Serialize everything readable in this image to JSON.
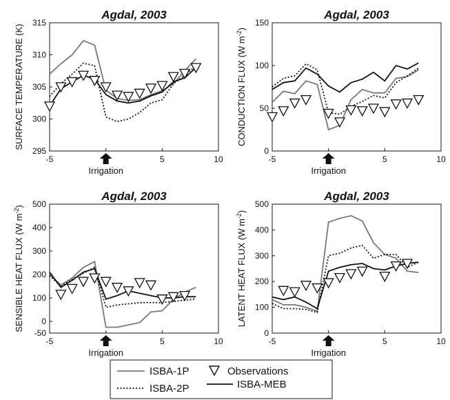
{
  "legend": {
    "items": [
      {
        "label": "ISBA-1P",
        "series": "ISBA-1P"
      },
      {
        "label": "Observations",
        "series": "Observations"
      },
      {
        "label": "ISBA-2P",
        "series": "ISBA-2P"
      },
      {
        "label": "ISBA-MEB",
        "series": "ISBA-MEB"
      }
    ]
  },
  "series_styles": {
    "ISBA-1P": {
      "color": "#777777",
      "dash": "none",
      "width": 1.8,
      "kind": "line"
    },
    "ISBA-2P": {
      "color": "#111111",
      "dash": "2,2.5",
      "width": 1.8,
      "kind": "line"
    },
    "ISBA-MEB": {
      "color": "#111111",
      "dash": "none",
      "width": 1.8,
      "kind": "line"
    },
    "Observations": {
      "color": "#111111",
      "kind": "marker",
      "marker": "triangle-down"
    }
  },
  "annotation_icon": "up-arrow-icon",
  "chart_data": [
    {
      "type": "line",
      "title": "Agdal, 2003",
      "ylabel_main": "SURFACE TEMPERATURE (K)",
      "ylabel_sup": "",
      "ylabel_tail": "",
      "xlim": [
        -5,
        10
      ],
      "ylim": [
        295,
        315
      ],
      "xticks": [
        -5,
        0,
        5,
        10
      ],
      "yticks": [
        295,
        300,
        305,
        310,
        315
      ],
      "annotation": {
        "text": "Irrigation",
        "x": 0
      },
      "series": [
        {
          "name": "ISBA-1P",
          "x": [
            -5,
            -4,
            -3,
            -2,
            -1,
            0,
            1,
            2,
            3,
            4,
            5,
            6,
            7,
            8
          ],
          "values": [
            307,
            308.6,
            310,
            312.2,
            311.5,
            304.5,
            303.2,
            302.9,
            303,
            303.8,
            304.4,
            305.5,
            307.5,
            309.4
          ]
        },
        {
          "name": "ISBA-2P",
          "x": [
            -5,
            -4,
            -3,
            -2,
            -1,
            0,
            1,
            2,
            3,
            4,
            5,
            6,
            7,
            8
          ],
          "values": [
            303.5,
            305.5,
            307,
            308.7,
            308.3,
            300.3,
            299.6,
            300,
            301,
            302.5,
            303,
            305.5,
            306.8,
            308.3
          ]
        },
        {
          "name": "ISBA-MEB",
          "x": [
            -5,
            -4,
            -3,
            -2,
            -1,
            0,
            1,
            2,
            3,
            4,
            5,
            6,
            7,
            8
          ],
          "values": [
            302,
            304.7,
            305.8,
            306.8,
            306.2,
            303.8,
            302.8,
            302.5,
            302.8,
            303.6,
            304.2,
            305.8,
            306.4,
            308
          ]
        },
        {
          "name": "Observations",
          "x": [
            -5,
            -4,
            -3,
            -2,
            -1,
            0,
            1,
            2,
            3,
            4,
            5,
            6,
            7,
            8
          ],
          "values": [
            302,
            305,
            305.8,
            306.8,
            306,
            305,
            303.7,
            303.5,
            304,
            304.8,
            305.2,
            306.6,
            307.1,
            308
          ]
        }
      ]
    },
    {
      "type": "line",
      "title": "Agdal, 2003",
      "ylabel_main": "CONDUCTION FLUX (W m",
      "ylabel_sup": "-2",
      "ylabel_tail": ")",
      "xlim": [
        -5,
        10
      ],
      "ylim": [
        0,
        150
      ],
      "xticks": [
        -5,
        0,
        5,
        10
      ],
      "yticks": [
        0,
        50,
        100,
        150
      ],
      "annotation": {
        "text": "Irrigation",
        "x": 0
      },
      "series": [
        {
          "name": "ISBA-1P",
          "x": [
            -5,
            -4,
            -3,
            -2,
            -1,
            0,
            1,
            2,
            3,
            4,
            5,
            6,
            7,
            8
          ],
          "values": [
            57,
            70,
            67,
            82,
            78,
            25,
            30,
            60,
            72,
            68,
            68,
            85,
            87,
            95
          ]
        },
        {
          "name": "ISBA-2P",
          "x": [
            -5,
            -4,
            -3,
            -2,
            -1,
            0,
            1,
            2,
            3,
            4,
            5,
            6,
            7,
            8
          ],
          "values": [
            75,
            85,
            88,
            102,
            95,
            45,
            43,
            52,
            58,
            65,
            62,
            80,
            88,
            97
          ]
        },
        {
          "name": "ISBA-MEB",
          "x": [
            -5,
            -4,
            -3,
            -2,
            -1,
            0,
            1,
            2,
            3,
            4,
            5,
            6,
            7,
            8
          ],
          "values": [
            72,
            80,
            82,
            97,
            90,
            76,
            69,
            80,
            84,
            92,
            82,
            100,
            96,
            103
          ]
        },
        {
          "name": "Observations",
          "x": [
            -5,
            -4,
            -3,
            -2,
            -1,
            0,
            1,
            2,
            3,
            4,
            5,
            6,
            7,
            8
          ],
          "values": [
            40,
            47,
            56,
            60,
            null,
            44,
            34,
            48,
            47,
            50,
            46,
            55,
            56,
            60
          ]
        }
      ]
    },
    {
      "type": "line",
      "title": "Agdal, 2003",
      "ylabel_main": "SENSIBLE HEAT FLUX (W m",
      "ylabel_sup": "-2",
      "ylabel_tail": ")",
      "xlim": [
        -5,
        10
      ],
      "ylim": [
        -50,
        500
      ],
      "xticks": [
        -5,
        0,
        5,
        10
      ],
      "yticks": [
        -50,
        0,
        100,
        200,
        300,
        400,
        500
      ],
      "annotation": {
        "text": "Irrigation",
        "x": 0
      },
      "series": [
        {
          "name": "ISBA-1P",
          "x": [
            -5,
            -4,
            -3,
            -2,
            -1,
            0,
            1,
            2,
            3,
            4,
            5,
            6,
            7,
            8
          ],
          "values": [
            200,
            155,
            185,
            230,
            255,
            -25,
            -25,
            -15,
            -5,
            40,
            45,
            95,
            125,
            145
          ]
        },
        {
          "name": "ISBA-2P",
          "x": [
            -5,
            -4,
            -3,
            -2,
            -1,
            0,
            1,
            2,
            3,
            4,
            5,
            6,
            7,
            8
          ],
          "values": [
            195,
            150,
            180,
            205,
            230,
            60,
            70,
            75,
            80,
            80,
            80,
            85,
            90,
            95
          ]
        },
        {
          "name": "ISBA-MEB",
          "x": [
            -5,
            -4,
            -3,
            -2,
            -1,
            0,
            1,
            2,
            3,
            4,
            5,
            6,
            7,
            8
          ],
          "values": [
            210,
            145,
            175,
            210,
            225,
            95,
            110,
            130,
            120,
            110,
            100,
            100,
            105,
            105
          ]
        },
        {
          "name": "Observations",
          "x": [
            -5,
            -4,
            -3,
            -2,
            -1,
            0,
            1,
            2,
            3,
            4,
            5,
            6,
            7,
            8
          ],
          "values": [
            null,
            115,
            140,
            170,
            185,
            170,
            145,
            130,
            165,
            155,
            95,
            105,
            110,
            null
          ]
        }
      ]
    },
    {
      "type": "line",
      "title": "Agdal, 2003",
      "ylabel_main": "LATENT HEAT FLUX (W m",
      "ylabel_sup": "-2",
      "ylabel_tail": ")",
      "xlim": [
        -5,
        10
      ],
      "ylim": [
        0,
        500
      ],
      "xticks": [
        -5,
        0,
        5,
        10
      ],
      "yticks": [
        0,
        100,
        200,
        300,
        400,
        500
      ],
      "annotation": {
        "text": "Irrigation",
        "x": 0
      },
      "series": [
        {
          "name": "ISBA-1P",
          "x": [
            -5,
            -4,
            -3,
            -2,
            -1,
            0,
            1,
            2,
            3,
            4,
            5,
            6,
            7,
            8
          ],
          "values": [
            130,
            110,
            110,
            100,
            85,
            430,
            445,
            455,
            435,
            350,
            305,
            290,
            240,
            235
          ]
        },
        {
          "name": "ISBA-2P",
          "x": [
            -5,
            -4,
            -3,
            -2,
            -1,
            0,
            1,
            2,
            3,
            4,
            5,
            6,
            7,
            8
          ],
          "values": [
            115,
            95,
            95,
            92,
            80,
            300,
            310,
            330,
            340,
            290,
            305,
            305,
            255,
            275
          ]
        },
        {
          "name": "ISBA-MEB",
          "x": [
            -5,
            -4,
            -3,
            -2,
            -1,
            0,
            1,
            2,
            3,
            4,
            5,
            6,
            7,
            8
          ],
          "values": [
            140,
            130,
            140,
            120,
            95,
            240,
            255,
            265,
            270,
            250,
            245,
            260,
            270,
            275
          ]
        },
        {
          "name": "Observations",
          "x": [
            -5,
            -4,
            -3,
            -2,
            -1,
            0,
            1,
            2,
            3,
            4,
            5,
            6,
            7,
            8
          ],
          "values": [
            null,
            165,
            160,
            185,
            175,
            195,
            215,
            230,
            240,
            null,
            220,
            260,
            270,
            null
          ]
        }
      ]
    }
  ]
}
